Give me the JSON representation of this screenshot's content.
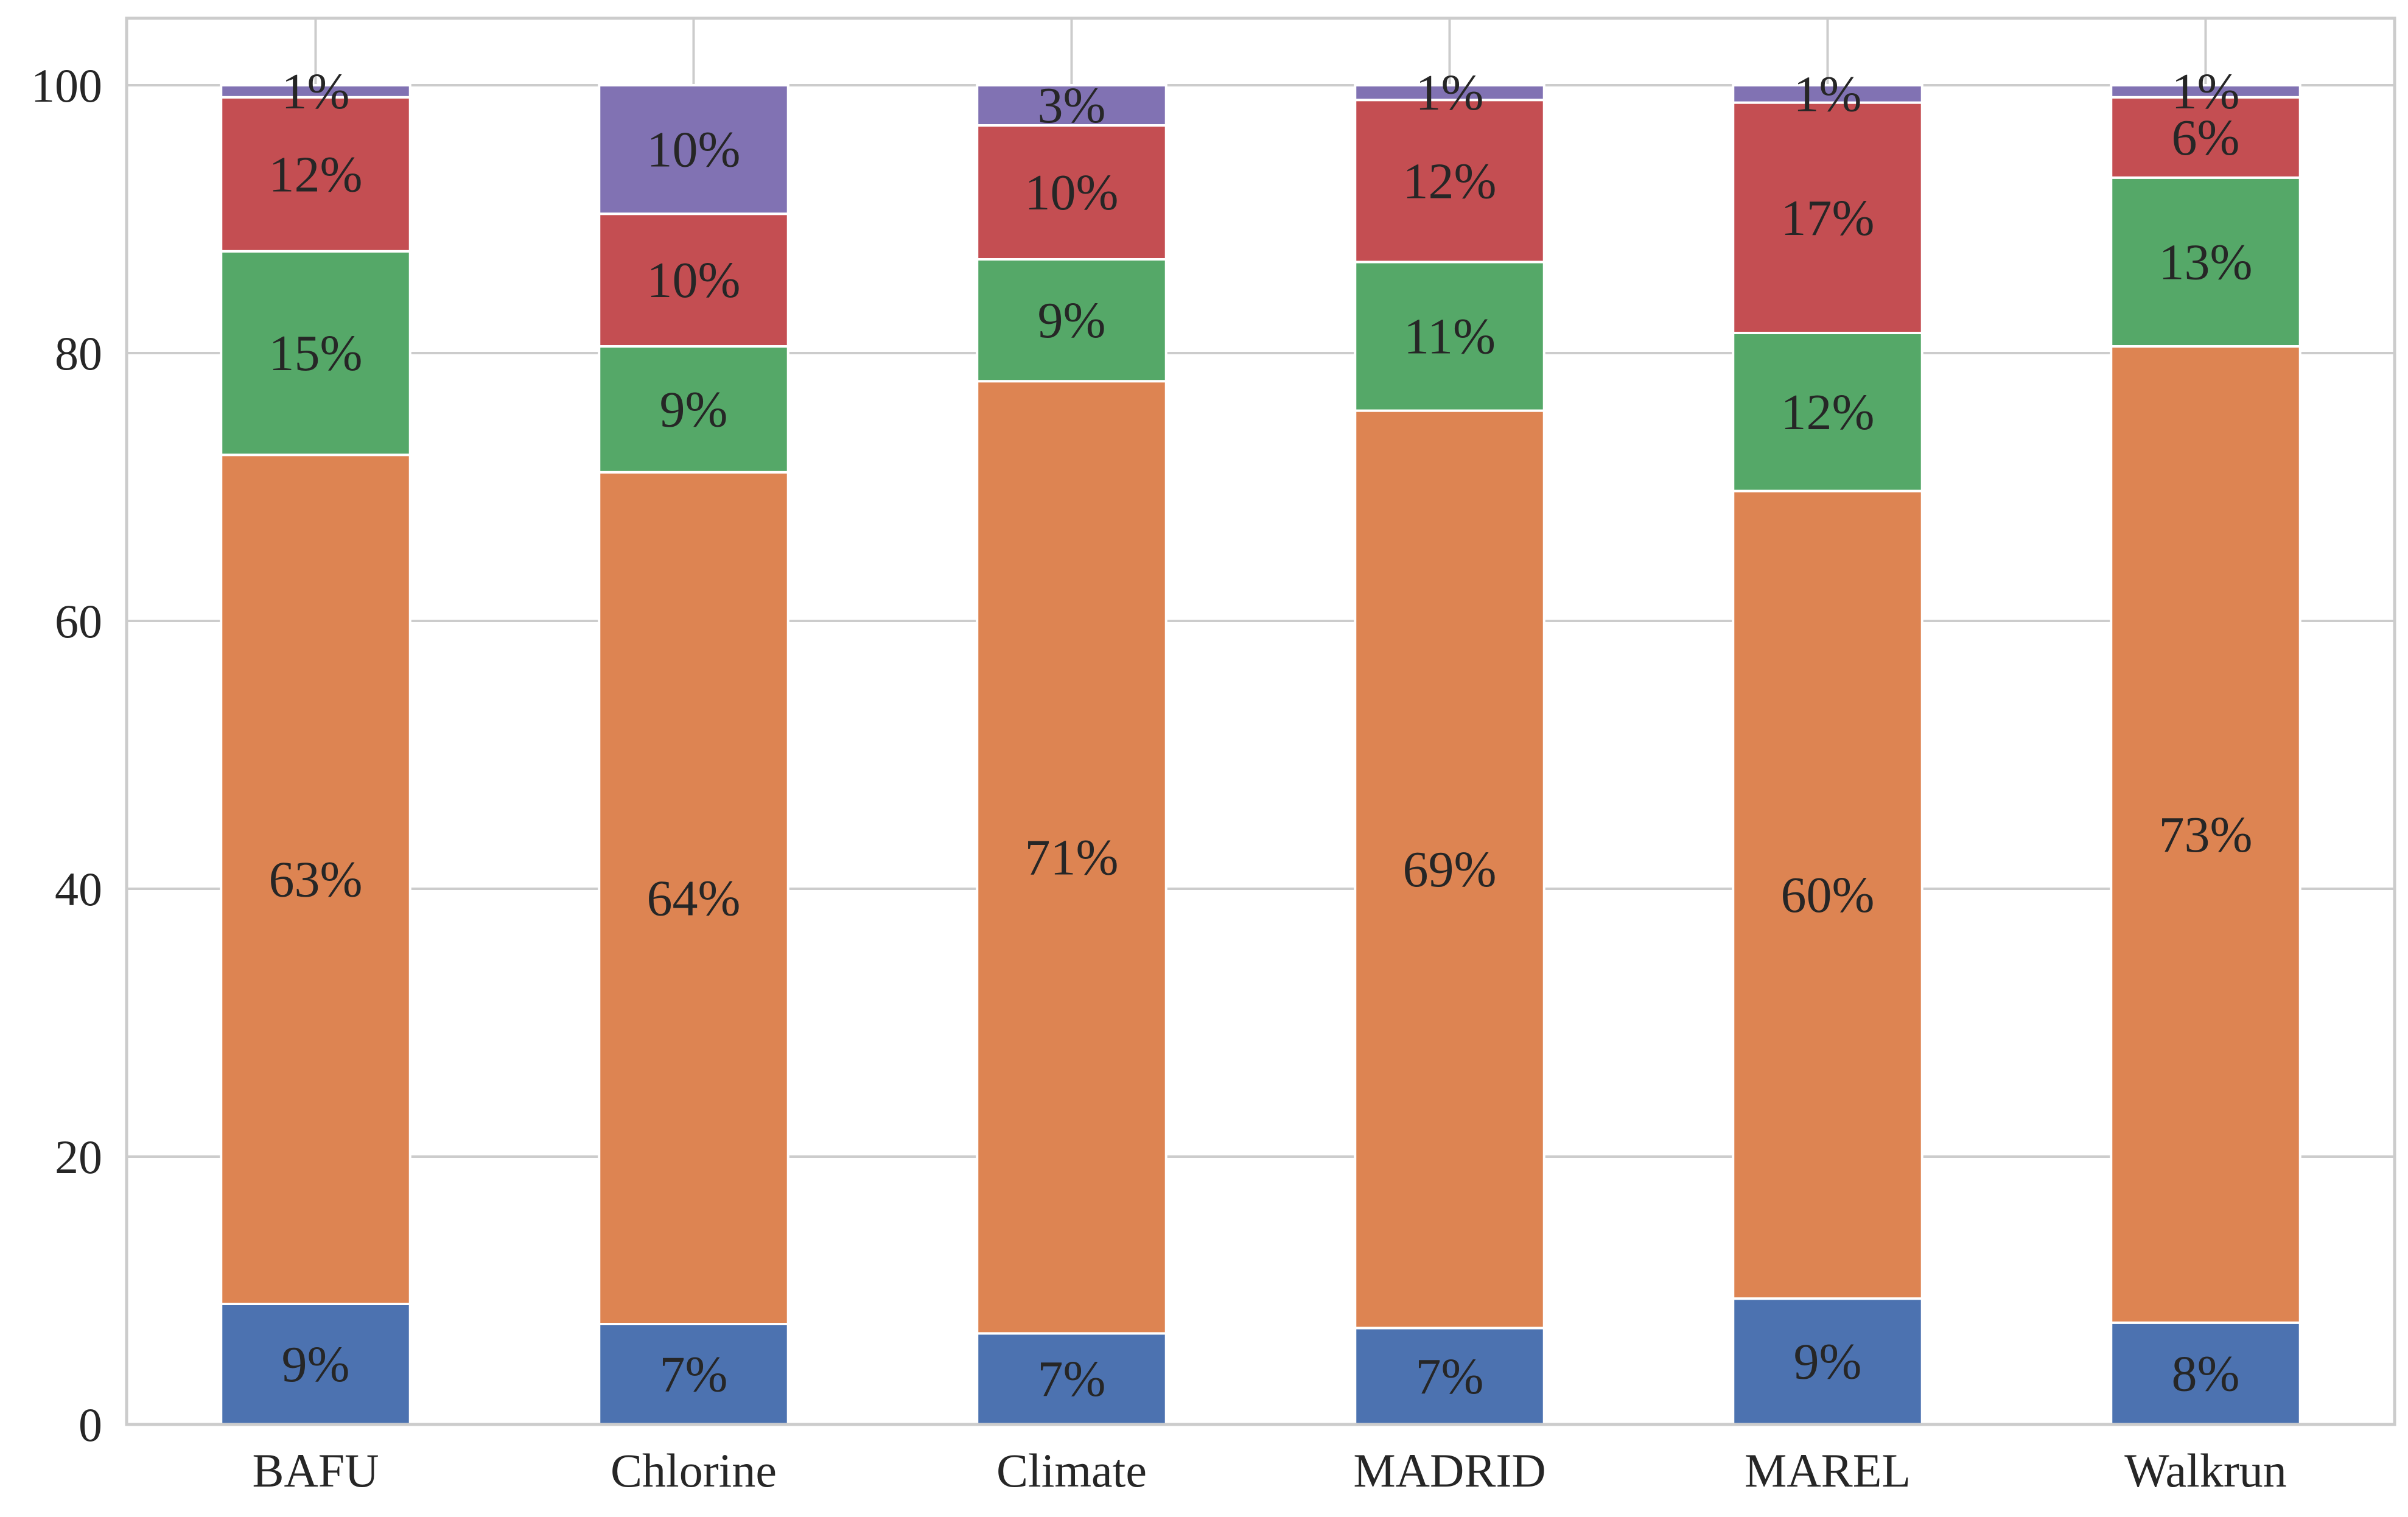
{
  "chart_data": {
    "type": "bar",
    "stacked": true,
    "categories": [
      "BAFU",
      "Chlorine",
      "Climate",
      "MADRID",
      "MAREL",
      "Walkrun"
    ],
    "series": [
      {
        "color": "#4c72b0",
        "values": [
          9.0,
          7.5,
          6.8,
          7.2,
          9.4,
          7.6
        ],
        "labels": [
          "9%",
          "7%",
          "7%",
          "7%",
          "9%",
          "8%"
        ]
      },
      {
        "color": "#dd8452",
        "values": [
          63.4,
          63.6,
          71.1,
          68.5,
          60.3,
          72.9
        ],
        "labels": [
          "63%",
          "64%",
          "71%",
          "69%",
          "60%",
          "73%"
        ]
      },
      {
        "color": "#55a868",
        "values": [
          15.2,
          9.4,
          9.1,
          11.1,
          11.8,
          12.6
        ],
        "labels": [
          "15%",
          "9%",
          "9%",
          "11%",
          "12%",
          "13%"
        ]
      },
      {
        "color": "#c44e52",
        "values": [
          11.5,
          9.9,
          10.0,
          12.1,
          17.2,
          6.0
        ],
        "labels": [
          "12%",
          "10%",
          "10%",
          "12%",
          "17%",
          "6%"
        ]
      },
      {
        "color": "#8172b3",
        "values": [
          0.9,
          9.6,
          3.0,
          1.1,
          1.3,
          0.9
        ],
        "labels": [
          "1%",
          "10%",
          "3%",
          "1%",
          "1%",
          "1%"
        ]
      }
    ],
    "ylim": [
      0,
      105
    ],
    "yticks": [
      "0",
      "20",
      "40",
      "60",
      "80",
      "100"
    ],
    "grid": true,
    "legend": "none"
  }
}
